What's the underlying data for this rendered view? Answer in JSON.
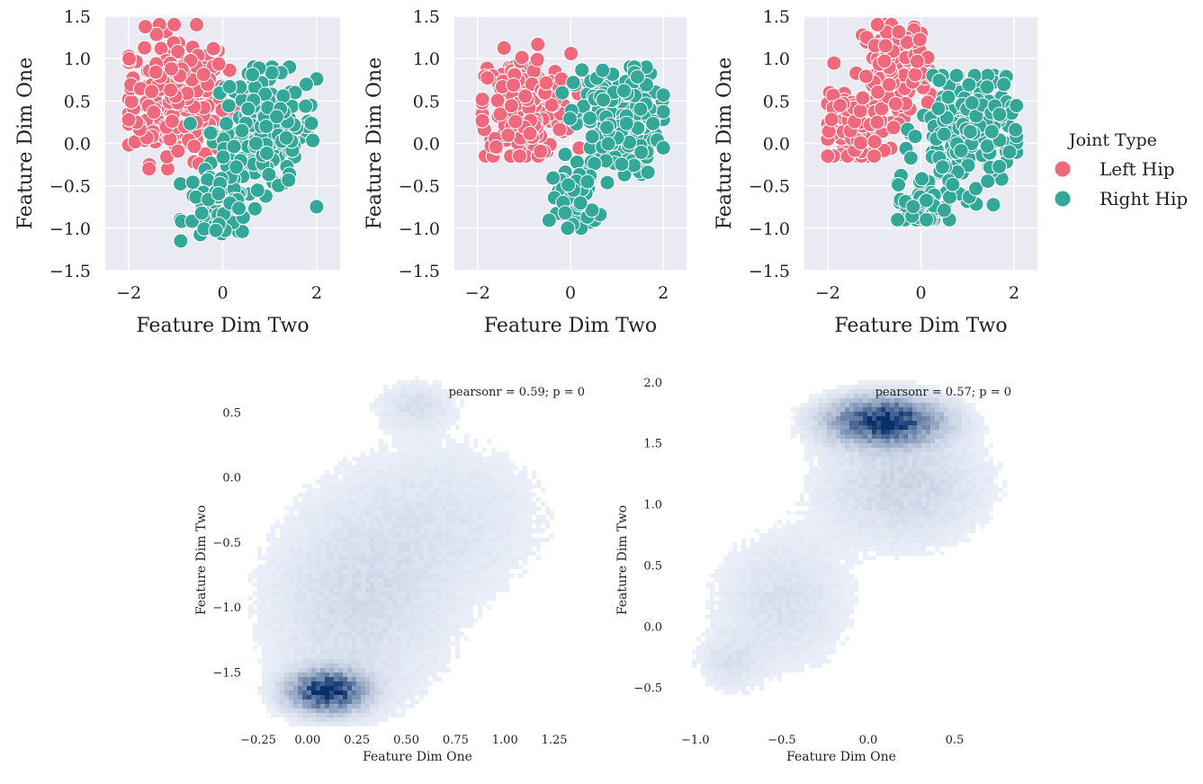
{
  "legend": {
    "title": "Joint Type",
    "entries": [
      {
        "label": "Left Hip",
        "color": "#f0687c"
      },
      {
        "label": "Right Hip",
        "color": "#33a899"
      }
    ]
  },
  "chart_data": [
    {
      "type": "scatter",
      "panel": "top-left",
      "xlabel": "Feature Dim Two",
      "ylabel": "Feature Dim One",
      "xlim": [
        -2.5,
        2.5
      ],
      "ylim": [
        -1.5,
        1.5
      ],
      "xticks": [
        "−2",
        "0",
        "2"
      ],
      "yticks": [
        "1.5",
        "1.0",
        "0.5",
        "0.0",
        "−0.5",
        "−1.0",
        "−1.5"
      ],
      "grid": true,
      "series": [
        {
          "name": "Left Hip",
          "clusters": [
            {
              "cx": -1.0,
              "cy": 0.55,
              "sx": 0.55,
              "sy": 0.38,
              "n": 230
            }
          ],
          "range": {
            "x": [
              -2.0,
              0.3
            ],
            "y": [
              -0.3,
              1.4
            ]
          }
        },
        {
          "name": "Right Hip",
          "clusters": [
            {
              "cx": 0.9,
              "cy": 0.15,
              "sx": 0.55,
              "sy": 0.35,
              "n": 180
            },
            {
              "cx": -0.1,
              "cy": -0.7,
              "sx": 0.35,
              "sy": 0.22,
              "n": 70
            }
          ],
          "range": {
            "x": [
              -0.9,
              2.0
            ],
            "y": [
              -1.15,
              0.9
            ]
          }
        }
      ]
    },
    {
      "type": "scatter",
      "panel": "top-middle",
      "xlabel": "Feature Dim Two",
      "ylabel": "Feature Dim One",
      "xlim": [
        -2.5,
        2.5
      ],
      "ylim": [
        -1.5,
        1.5
      ],
      "xticks": [
        "−2",
        "0",
        "2"
      ],
      "yticks": [
        "1.5",
        "1.0",
        "0.5",
        "0.0",
        "−0.5",
        "−1.0",
        "−1.5"
      ],
      "grid": true,
      "series": [
        {
          "name": "Left Hip",
          "clusters": [
            {
              "cx": -1.0,
              "cy": 0.45,
              "sx": 0.5,
              "sy": 0.3,
              "n": 220
            }
          ],
          "range": {
            "x": [
              -1.9,
              0.3
            ],
            "y": [
              -0.15,
              1.2
            ]
          }
        },
        {
          "name": "Right Hip",
          "clusters": [
            {
              "cx": 1.0,
              "cy": 0.25,
              "sx": 0.45,
              "sy": 0.32,
              "n": 190
            },
            {
              "cx": 0.1,
              "cy": -0.65,
              "sx": 0.25,
              "sy": 0.2,
              "n": 60
            }
          ],
          "range": {
            "x": [
              -0.5,
              2.0
            ],
            "y": [
              -1.0,
              0.9
            ]
          }
        }
      ]
    },
    {
      "type": "scatter",
      "panel": "top-right",
      "xlabel": "Feature Dim Two",
      "ylabel": "Feature Dim One",
      "xlim": [
        -2.5,
        2.5
      ],
      "ylim": [
        -1.5,
        1.5
      ],
      "xticks": [
        "−2",
        "0",
        "2"
      ],
      "yticks": [
        "1.5",
        "1.0",
        "0.5",
        "0.0",
        "−0.5",
        "−1.0",
        "−1.5"
      ],
      "grid": true,
      "series": [
        {
          "name": "Left Hip",
          "clusters": [
            {
              "cx": -1.4,
              "cy": 0.15,
              "sx": 0.35,
              "sy": 0.2,
              "n": 120
            },
            {
              "cx": -0.55,
              "cy": 0.9,
              "sx": 0.35,
              "sy": 0.3,
              "n": 130
            }
          ],
          "range": {
            "x": [
              -2.0,
              0.2
            ],
            "y": [
              -0.15,
              1.4
            ]
          }
        },
        {
          "name": "Right Hip",
          "clusters": [
            {
              "cx": 1.0,
              "cy": 0.15,
              "sx": 0.5,
              "sy": 0.35,
              "n": 200
            },
            {
              "cx": 0.05,
              "cy": -0.7,
              "sx": 0.3,
              "sy": 0.18,
              "n": 60
            }
          ],
          "range": {
            "x": [
              -0.5,
              2.05
            ],
            "y": [
              -0.9,
              0.8
            ]
          }
        }
      ]
    },
    {
      "type": "heatmap",
      "panel": "bottom-left",
      "xlabel": "Feature Dim One",
      "ylabel": "Feature Dim Two",
      "xlim": [
        -0.3,
        1.45
      ],
      "ylim": [
        -1.92,
        0.78
      ],
      "xticks": [
        "−0.25",
        "0.00",
        "0.25",
        "0.50",
        "0.75",
        "1.00",
        "1.25"
      ],
      "yticks": [
        "0.5",
        "0.0",
        "−0.5",
        "−1.0",
        "−1.5"
      ],
      "annotation": "pearsonr = 0.59; p = 0",
      "density": [
        {
          "cx": 0.1,
          "cy": -1.65,
          "sx": 0.12,
          "sy": 0.1,
          "w": 1.0
        },
        {
          "cx": 0.25,
          "cy": -1.0,
          "sx": 0.3,
          "sy": 0.5,
          "w": 0.12
        },
        {
          "cx": 0.55,
          "cy": 0.55,
          "sx": 0.12,
          "sy": 0.12,
          "w": 0.1
        },
        {
          "cx": 0.7,
          "cy": -0.3,
          "sx": 0.35,
          "sy": 0.4,
          "w": 0.07
        }
      ]
    },
    {
      "type": "heatmap",
      "panel": "bottom-right",
      "xlabel": "Feature Dim One",
      "ylabel": "Feature Dim Two",
      "xlim": [
        -1.15,
        0.88
      ],
      "ylim": [
        -0.82,
        2.05
      ],
      "xticks": [
        "−1.0",
        "−0.5",
        "0.0",
        "0.5"
      ],
      "yticks": [
        "2.0",
        "1.5",
        "1.0",
        "0.5",
        "0.0",
        "−0.5"
      ],
      "annotation": "pearsonr = 0.57; p = 0",
      "density": [
        {
          "cx": 0.1,
          "cy": 1.68,
          "sx": 0.2,
          "sy": 0.12,
          "w": 1.0
        },
        {
          "cx": 0.2,
          "cy": 1.15,
          "sx": 0.3,
          "sy": 0.3,
          "w": 0.15
        },
        {
          "cx": -0.5,
          "cy": 0.2,
          "sx": 0.25,
          "sy": 0.35,
          "w": 0.1
        },
        {
          "cx": -0.8,
          "cy": -0.3,
          "sx": 0.12,
          "sy": 0.15,
          "w": 0.08
        }
      ]
    }
  ]
}
